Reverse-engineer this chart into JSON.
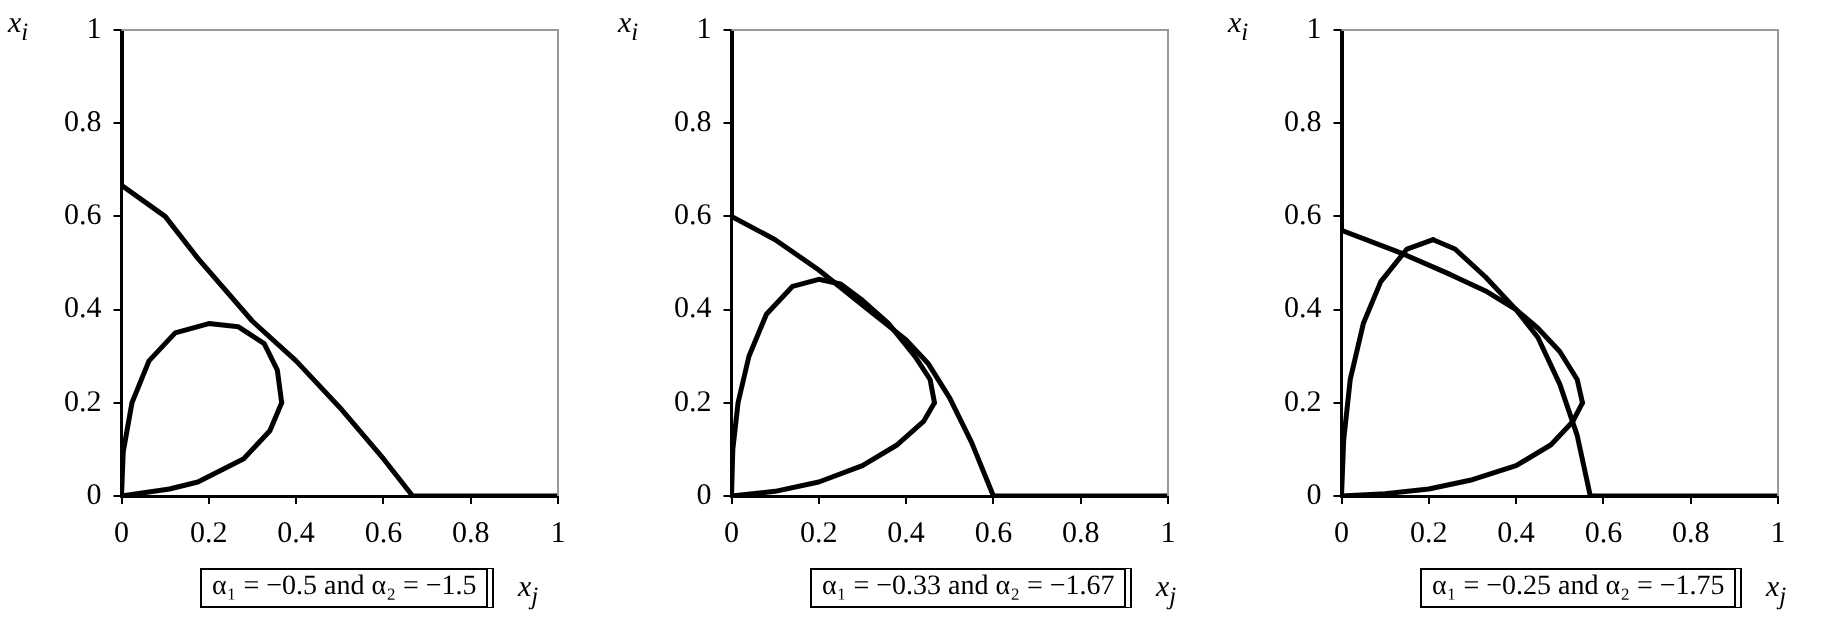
{
  "chart_data": [
    {
      "type": "line",
      "xlabel": "x$_{j}$",
      "ylabel": "x$_{i}$",
      "annotations": [
        "α₁ = −0.5 and α₂ = −1.5"
      ],
      "xlim": [
        0,
        1
      ],
      "ylim": [
        0,
        1
      ],
      "xticks": [
        0,
        0.2,
        0.4,
        0.6,
        0.8,
        1
      ],
      "yticks": [
        0,
        0.2,
        0.4,
        0.6,
        0.8,
        1
      ],
      "grid": false,
      "legend": false,
      "marker": "none",
      "series": [
        {
          "color": "#000000",
          "x": [
            0,
            0,
            0.1,
            0.175,
            0.3,
            0.4,
            0.5,
            0.6,
            0.667,
            1
          ],
          "values": [
            1,
            0.667,
            0.6,
            0.51,
            0.375,
            0.29,
            0.19,
            0.08,
            0,
            0
          ]
        },
        {
          "color": "#000000",
          "x": [
            0,
            0.11,
            0.175,
            0.28,
            0.34,
            0.367
          ],
          "values": [
            0,
            0.015,
            0.03,
            0.08,
            0.14,
            0.2
          ]
        },
        {
          "color": "#000000",
          "x": [
            0,
            0.004,
            0.024,
            0.063,
            0.123,
            0.2,
            0.268,
            0.327,
            0.357,
            0.367
          ],
          "values": [
            0,
            0.095,
            0.2,
            0.29,
            0.35,
            0.37,
            0.363,
            0.327,
            0.27,
            0.2
          ]
        }
      ]
    },
    {
      "type": "line",
      "xlabel": "x$_{j}$",
      "ylabel": "x$_{i}$",
      "annotations": [
        "α₁ = −0.33 and α₂ = −1.67"
      ],
      "xlim": [
        0,
        1
      ],
      "ylim": [
        0,
        1
      ],
      "xticks": [
        0,
        0.2,
        0.4,
        0.6,
        0.8,
        1
      ],
      "yticks": [
        0,
        0.2,
        0.4,
        0.6,
        0.8,
        1
      ],
      "grid": false,
      "legend": false,
      "marker": "none",
      "series": [
        {
          "color": "#000000",
          "x": [
            0,
            0,
            0.1,
            0.2,
            0.3,
            0.4,
            0.45,
            0.5,
            0.55,
            0.6,
            1
          ],
          "values": [
            1,
            0.6,
            0.55,
            0.485,
            0.41,
            0.335,
            0.285,
            0.21,
            0.115,
            0,
            0
          ]
        },
        {
          "color": "#000000",
          "x": [
            0,
            0.1,
            0.2,
            0.3,
            0.38,
            0.44,
            0.465
          ],
          "values": [
            0,
            0.01,
            0.03,
            0.065,
            0.11,
            0.16,
            0.2
          ]
        },
        {
          "color": "#000000",
          "x": [
            0,
            0.003,
            0.015,
            0.04,
            0.08,
            0.14,
            0.2,
            0.25,
            0.3,
            0.36,
            0.42,
            0.455,
            0.465
          ],
          "values": [
            0,
            0.1,
            0.2,
            0.3,
            0.39,
            0.45,
            0.465,
            0.455,
            0.42,
            0.37,
            0.3,
            0.25,
            0.2
          ]
        }
      ]
    },
    {
      "type": "line",
      "xlabel": "x$_{j}$",
      "ylabel": "x$_{i}$",
      "annotations": [
        "α₁ = −0.25 and α₂ = −1.75"
      ],
      "xlim": [
        0,
        1
      ],
      "ylim": [
        0,
        1
      ],
      "xticks": [
        0,
        0.2,
        0.4,
        0.6,
        0.8,
        1
      ],
      "yticks": [
        0,
        0.2,
        0.4,
        0.6,
        0.8,
        1
      ],
      "grid": false,
      "legend": false,
      "marker": "none",
      "series": [
        {
          "color": "#000000",
          "x": [
            0,
            0,
            0.14,
            0.25,
            0.33,
            0.4,
            0.45,
            0.5,
            0.54,
            0.57,
            1
          ],
          "values": [
            1,
            0.57,
            0.52,
            0.475,
            0.44,
            0.4,
            0.34,
            0.24,
            0.13,
            0,
            0
          ]
        },
        {
          "color": "#000000",
          "x": [
            0,
            0.1,
            0.2,
            0.3,
            0.4,
            0.48,
            0.53,
            0.552
          ],
          "values": [
            0,
            0.005,
            0.015,
            0.035,
            0.065,
            0.11,
            0.16,
            0.2
          ]
        },
        {
          "color": "#000000",
          "x": [
            0,
            0.005,
            0.02,
            0.05,
            0.09,
            0.15,
            0.21
          ],
          "values": [
            0,
            0.12,
            0.25,
            0.37,
            0.46,
            0.53,
            0.55
          ]
        },
        {
          "color": "#000000",
          "x": [
            0.21,
            0.26,
            0.33,
            0.4,
            0.45,
            0.5,
            0.54,
            0.552
          ],
          "values": [
            0.55,
            0.53,
            0.47,
            0.4,
            0.36,
            0.31,
            0.25,
            0.2
          ]
        }
      ]
    }
  ]
}
